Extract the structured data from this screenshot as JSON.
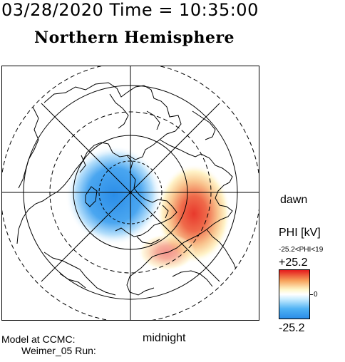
{
  "header": {
    "datetime": "03/28/2020 Time = 10:35:00",
    "hemisphere": "Northern Hemisphere"
  },
  "map": {
    "dawn_label": "dawn",
    "midnight_label": "midnight"
  },
  "colorbar": {
    "title": "PHI [kV]",
    "range_text": "-25.2<PHI<19",
    "max_label": "+25.2",
    "zero_label": "0",
    "min_label": "-25.2",
    "max_color": "#e41a1c",
    "min_color": "#2a8de8"
  },
  "footer": {
    "model_line1": "Model at CCMC:",
    "model_line2": "Weimer_05 Run:"
  }
}
